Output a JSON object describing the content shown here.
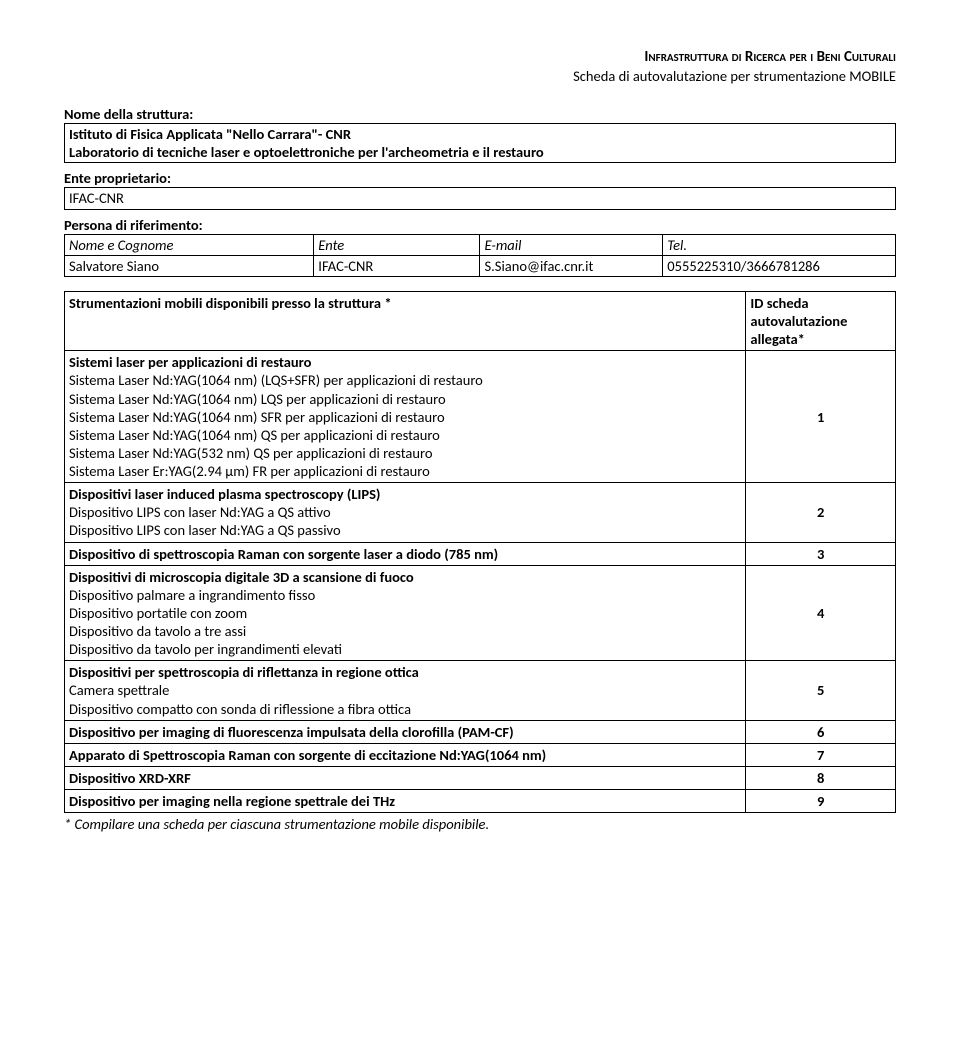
{
  "header": {
    "title": "Infrastruttura di Ricerca per i Beni Culturali",
    "subtitle": "Scheda di autovalutazione per strumentazione MOBILE"
  },
  "struttura": {
    "label": "Nome della struttura:",
    "line1": "Istituto di Fisica Applicata \"Nello Carrara\"- CNR",
    "line2": "Laboratorio di tecniche laser e optoelettroniche per l'archeometria e il restauro"
  },
  "ente": {
    "label": "Ente proprietario:",
    "value": "IFAC-CNR"
  },
  "persona": {
    "label": "Persona di riferimento:",
    "headers": {
      "nome": "Nome e Cognome",
      "ente": "Ente",
      "email": "E-mail",
      "tel": "Tel."
    },
    "row": {
      "nome": "Salvatore Siano",
      "ente": "IFAC-CNR",
      "email": "S.Siano@ifac.cnr.it",
      "tel": "0555225310/3666781286"
    }
  },
  "table": {
    "head_left": "Strumentazioni mobili disponibili presso la struttura *",
    "head_right": "ID scheda autovalutazione allegata*",
    "groups": [
      {
        "items": [
          {
            "text": "Sistemi laser per applicazioni di restauro",
            "bold": true
          },
          {
            "text": "Sistema Laser Nd:YAG(1064 nm) (LQS+SFR) per applicazioni di restauro"
          },
          {
            "text": "Sistema Laser Nd:YAG(1064 nm) LQS per applicazioni di restauro"
          },
          {
            "text": "Sistema Laser Nd:YAG(1064 nm) SFR per applicazioni di restauro"
          },
          {
            "text": "Sistema Laser Nd:YAG(1064 nm) QS per applicazioni di restauro"
          },
          {
            "text": "Sistema Laser Nd:YAG(532 nm) QS per applicazioni di restauro"
          },
          {
            "text": "Sistema Laser Er:YAG(2.94 µm) FR per applicazioni di restauro"
          }
        ],
        "id": "1"
      },
      {
        "items": [
          {
            "text": "Dispositivi laser induced plasma spectroscopy (LIPS)",
            "bold": true
          },
          {
            "text": "Dispositivo LIPS  con laser Nd:YAG a QS attivo"
          },
          {
            "text": "Dispositivo  LIPS con laser Nd:YAG a QS passivo"
          }
        ],
        "id": "2"
      },
      {
        "items": [
          {
            "text": "Dispositivo di spettroscopia Raman con sorgente laser a diodo (785 nm)",
            "bold": true
          }
        ],
        "id": "3"
      },
      {
        "items": [
          {
            "text": "Dispositivi di microscopia digitale 3D a scansione di fuoco",
            "bold": true
          },
          {
            "text": "Dispositivo palmare a ingrandimento fisso"
          },
          {
            "text": "Dispositivo portatile con zoom"
          },
          {
            "text": "Dispositivo da tavolo a tre assi"
          },
          {
            "text": "Dispositivo da tavolo per ingrandimenti elevati"
          }
        ],
        "id": "4"
      },
      {
        "items": [
          {
            "text": "Dispositivi per spettroscopia di riflettanza in regione ottica",
            "bold": true
          },
          {
            "text": "Camera spettrale"
          },
          {
            "text": "Dispositivo compatto con sonda di riflessione a fibra ottica"
          }
        ],
        "id": "5"
      },
      {
        "items": [
          {
            "text": "Dispositivo per imaging di fluorescenza impulsata della clorofilla (PAM-CF)",
            "bold": true
          }
        ],
        "id": "6"
      },
      {
        "items": [
          {
            "text": "Apparato di Spettroscopia Raman con sorgente di eccitazione Nd:YAG(1064 nm)",
            "bold": true
          }
        ],
        "id": "7"
      },
      {
        "items": [
          {
            "text": "Dispositivo XRD-XRF",
            "bold": true
          }
        ],
        "id": "8"
      },
      {
        "items": [
          {
            "text": "Dispositivo per imaging nella regione spettrale dei THz",
            "bold": true
          }
        ],
        "id": "9"
      }
    ]
  },
  "footnote": "* Compilare una scheda per ciascuna strumentazione mobile disponibile."
}
